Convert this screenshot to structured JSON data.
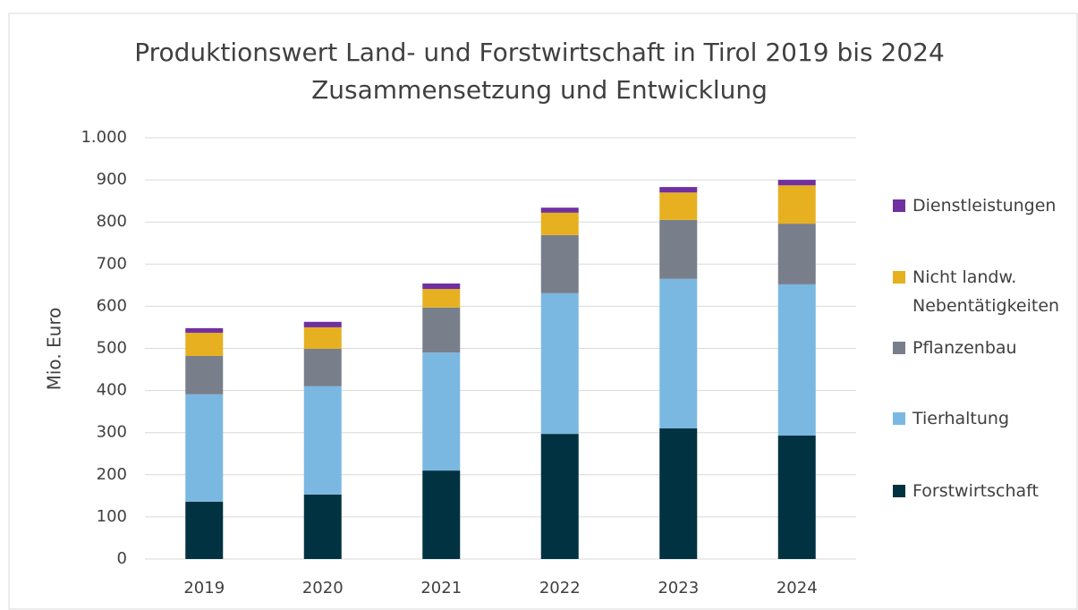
{
  "chart_data": {
    "type": "bar",
    "stacked": true,
    "title": "Produktionswert Land- und Forstwirtschaft in Tirol 2019 bis 2024",
    "subtitle": "Zusammensetzung und Entwicklung",
    "y_label": "Mio. Euro",
    "categories": [
      "2019",
      "2020",
      "2021",
      "2022",
      "2023",
      "2024"
    ],
    "series": [
      {
        "name": "Forstwirtschaft",
        "color": "#003241",
        "values": [
          136,
          153,
          210,
          297,
          310,
          293
        ]
      },
      {
        "name": "Tierhaltung",
        "color": "#7ab8e2",
        "values": [
          255,
          257,
          280,
          334,
          355,
          359
        ]
      },
      {
        "name": "Pflanzenbau",
        "color": "#787f8b",
        "values": [
          91,
          89,
          107,
          138,
          140,
          144
        ]
      },
      {
        "name": "Nicht landw. Nebentätigkeiten",
        "color": "#e6b020",
        "values": [
          55,
          51,
          44,
          53,
          65,
          91
        ]
      },
      {
        "name": "Dienstleistungen",
        "color": "#7030a0",
        "values": [
          11,
          13,
          13,
          12,
          13,
          13
        ]
      }
    ],
    "ylim": [
      0,
      1000
    ],
    "yticks": [
      0,
      100,
      200,
      300,
      400,
      500,
      600,
      700,
      800,
      900,
      {
        "value": 1000,
        "label": "1.000"
      }
    ],
    "grid": true,
    "legend": "right"
  }
}
